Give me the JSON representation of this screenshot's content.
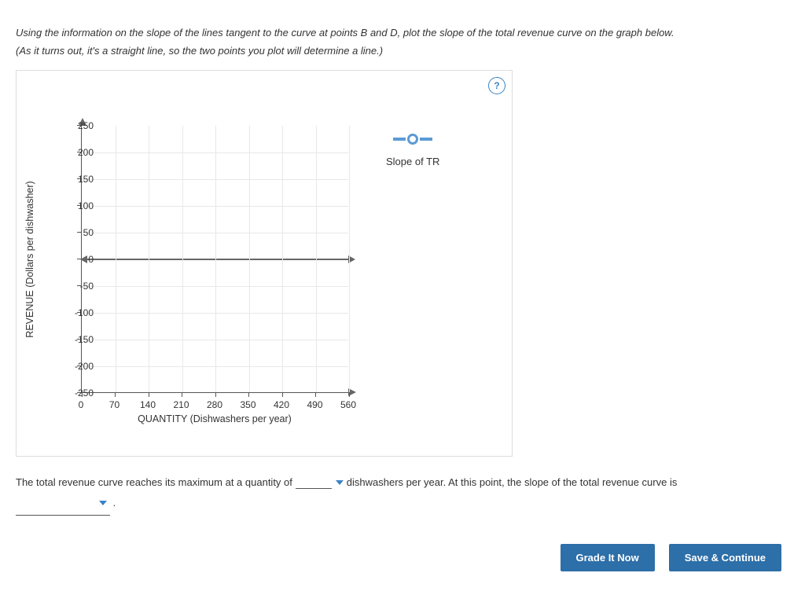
{
  "instructions": {
    "line1": "Using the information on the slope of the lines tangent to the curve at points B and D, plot the slope of the total revenue curve on the graph below.",
    "line2": "(As it turns out, it's a straight line, so the two points you plot will determine a line.)"
  },
  "help_label": "?",
  "chart": {
    "type": "scatter-line-empty",
    "y_axis": {
      "title": "REVENUE (Dollars per dishwasher)",
      "min": -250,
      "max": 250,
      "ticks": [
        250,
        200,
        150,
        100,
        50,
        0,
        -50,
        -100,
        -150,
        -200,
        -250
      ]
    },
    "x_axis": {
      "title": "QUANTITY (Dishwashers per year)",
      "min": 0,
      "max": 560,
      "ticks": [
        0,
        70,
        140,
        210,
        280,
        350,
        420,
        490,
        560
      ]
    },
    "grid_color": "#e8e8e8",
    "axis_color": "#555555",
    "legend": {
      "marker_color": "#5b9bd5",
      "label": "Slope of TR"
    }
  },
  "question": {
    "part1": "The total revenue curve reaches its maximum at a quantity of ",
    "part2": " dishwashers per year. At this point, the slope of the total revenue curve is",
    "blank1_value": "",
    "dropdown_value": ""
  },
  "footer": {
    "grade_label": "Grade It Now",
    "save_label": "Save & Continue"
  }
}
